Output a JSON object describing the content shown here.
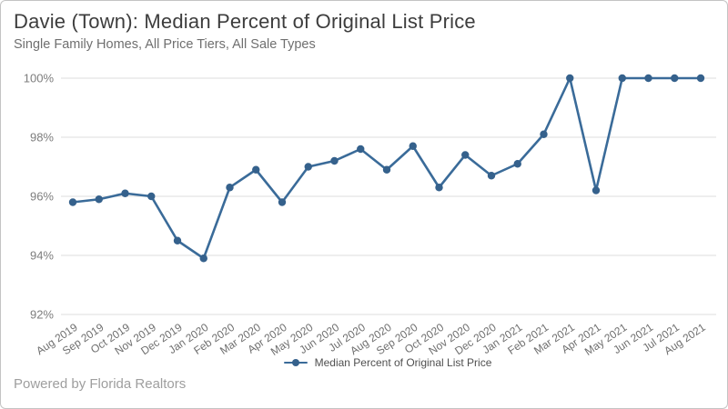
{
  "header": {
    "title": "Davie (Town): Median Percent of Original List Price",
    "subtitle": "Single Family Homes, All Price Tiers, All Sale Types"
  },
  "legend": {
    "label": "Median Percent of Original List Price"
  },
  "footer": {
    "text": "Powered by Florida Realtors"
  },
  "chart_data": {
    "type": "line",
    "title": "Davie (Town): Median Percent of Original List Price",
    "subtitle": "Single Family Homes, All Price Tiers, All Sale Types",
    "categories": [
      "Aug 2019",
      "Sep 2019",
      "Oct 2019",
      "Nov 2019",
      "Dec 2019",
      "Jan 2020",
      "Feb 2020",
      "Mar 2020",
      "Apr 2020",
      "May 2020",
      "Jun 2020",
      "Jul 2020",
      "Aug 2020",
      "Sep 2020",
      "Oct 2020",
      "Nov 2020",
      "Dec 2020",
      "Jan 2021",
      "Feb 2021",
      "Mar 2021",
      "Apr 2021",
      "May 2021",
      "Jun 2021",
      "Jul 2021",
      "Aug 2021"
    ],
    "series": [
      {
        "name": "Median Percent of Original List Price",
        "values": [
          95.8,
          95.9,
          96.1,
          96.0,
          94.5,
          93.9,
          96.3,
          96.9,
          95.8,
          97.0,
          97.2,
          97.6,
          96.9,
          97.7,
          96.3,
          97.4,
          96.7,
          97.1,
          98.1,
          100.0,
          96.2,
          100.0,
          100.0,
          100.0,
          100.0
        ]
      }
    ],
    "yticks": [
      {
        "value": 100,
        "label": "100%"
      },
      {
        "value": 98,
        "label": "98%"
      },
      {
        "value": 96,
        "label": "96%"
      },
      {
        "value": 94,
        "label": "94%"
      },
      {
        "value": 92,
        "label": "92%"
      }
    ],
    "ylim": [
      92,
      100
    ],
    "grid": true,
    "legend_position": "bottom",
    "colors": {
      "line": "#3a6b99",
      "marker": "#35618c",
      "grid": "#e3e3e3",
      "y_tick_text": "#7d7d7d",
      "x_tick_text": "#6f6f6f"
    }
  }
}
